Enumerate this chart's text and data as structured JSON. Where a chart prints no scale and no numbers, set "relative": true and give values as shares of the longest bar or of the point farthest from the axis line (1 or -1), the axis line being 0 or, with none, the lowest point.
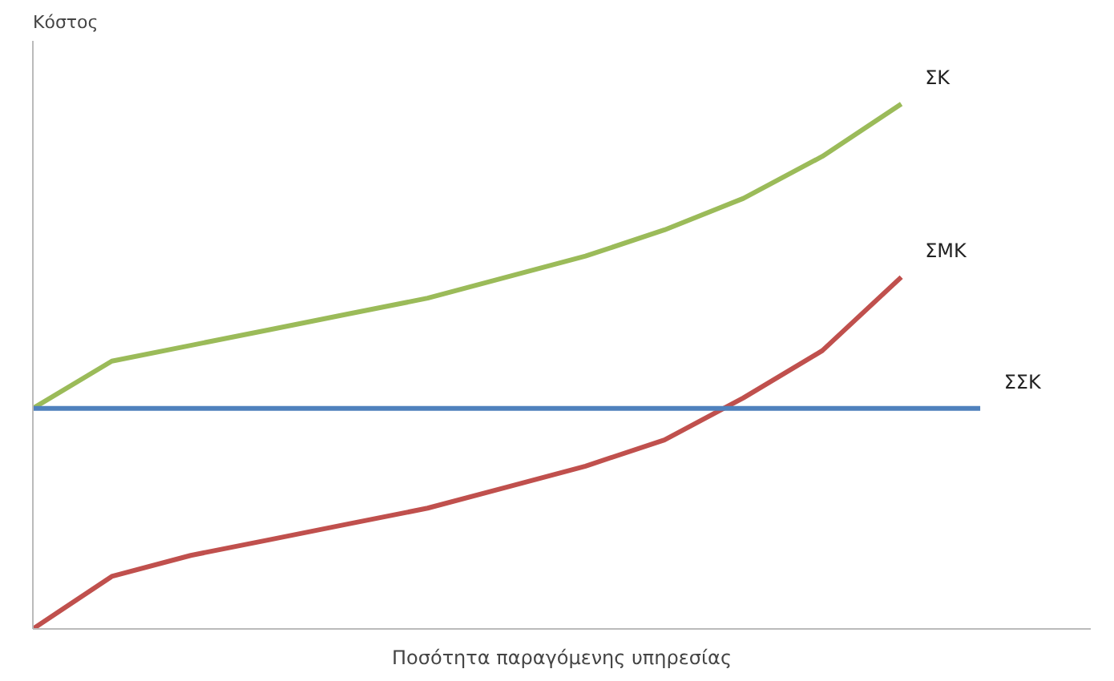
{
  "chart_data": {
    "type": "line",
    "relative": true,
    "ylabel": "Κόστος",
    "xlabel": "Ποσότητα παραγόμενης υπηρεσίας",
    "categories": [
      null,
      null,
      null,
      null,
      null,
      null,
      null,
      null,
      null,
      null,
      null,
      null,
      null
    ],
    "legend": false,
    "grid": false,
    "marker": "none",
    "line_style": "solid",
    "series": [
      {
        "name": "ΣΚ",
        "color": "#9bbb59",
        "values": [
          0.42,
          0.51,
          0.54,
          0.57,
          0.6,
          0.63,
          0.67,
          0.71,
          0.76,
          0.82,
          0.9,
          1.0,
          null
        ]
      },
      {
        "name": "ΣΜΚ",
        "color": "#c0504d",
        "values": [
          0,
          0.1,
          0.14,
          0.17,
          0.2,
          0.23,
          0.27,
          0.31,
          0.36,
          0.44,
          0.53,
          0.67,
          null
        ]
      },
      {
        "name": "ΣΣΚ",
        "color": "#4f81bd",
        "values": [
          0.42,
          0.42,
          0.42,
          0.42,
          0.42,
          0.42,
          0.42,
          0.42,
          0.42,
          0.42,
          0.42,
          0.42,
          0.42
        ]
      }
    ]
  }
}
